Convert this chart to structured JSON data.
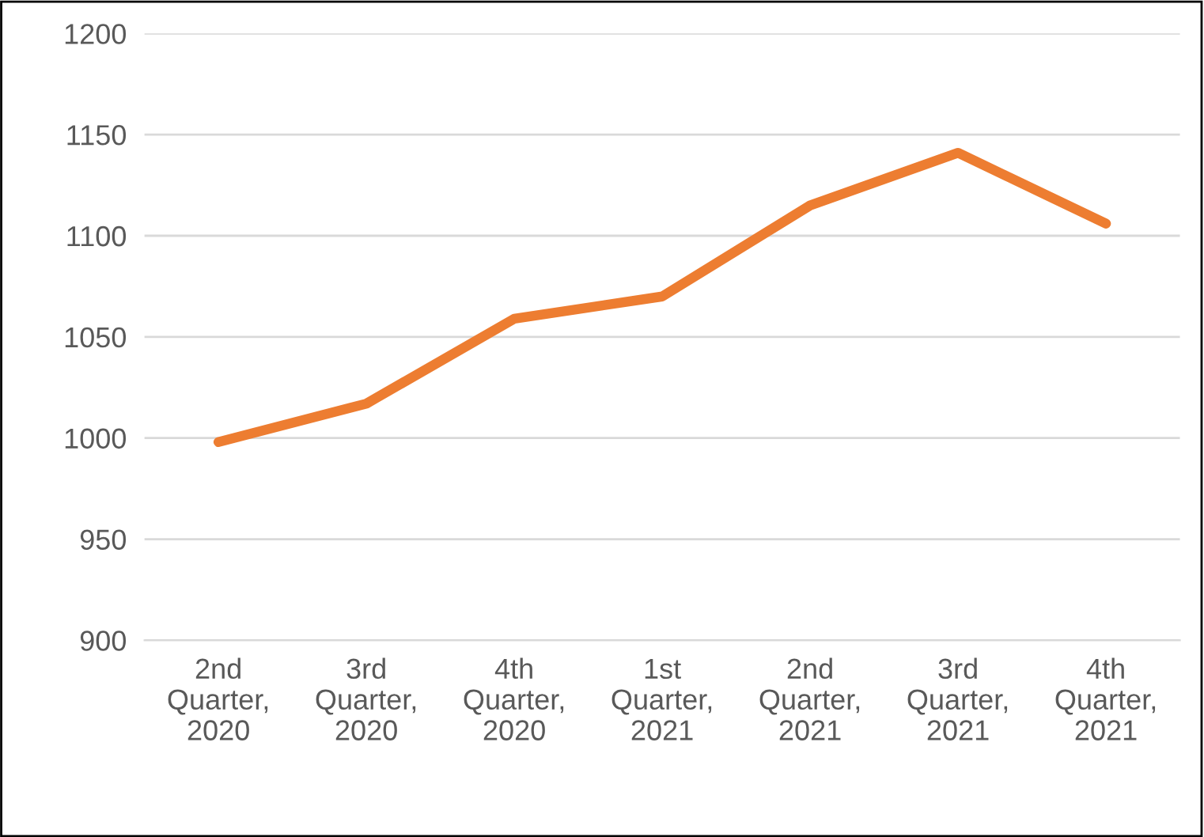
{
  "chart_data": {
    "type": "line",
    "categories": [
      "2nd\nQuarter,\n2020",
      "3rd\nQuarter,\n2020",
      "4th\nQuarter,\n2020",
      "1st\nQuarter,\n2021",
      "2nd\nQuarter,\n2021",
      "3rd\nQuarter,\n2021",
      "4th\nQuarter,\n2021"
    ],
    "series": [
      {
        "color": "#ed7d31",
        "values": [
          998,
          1017,
          1059,
          1070,
          1115,
          1141,
          1106
        ]
      }
    ],
    "ylim": [
      900,
      1200
    ],
    "yticks": [
      900,
      950,
      1000,
      1050,
      1100,
      1150,
      1200
    ],
    "grid": "y",
    "legend": false,
    "marker": "none",
    "line_style": "solid"
  }
}
